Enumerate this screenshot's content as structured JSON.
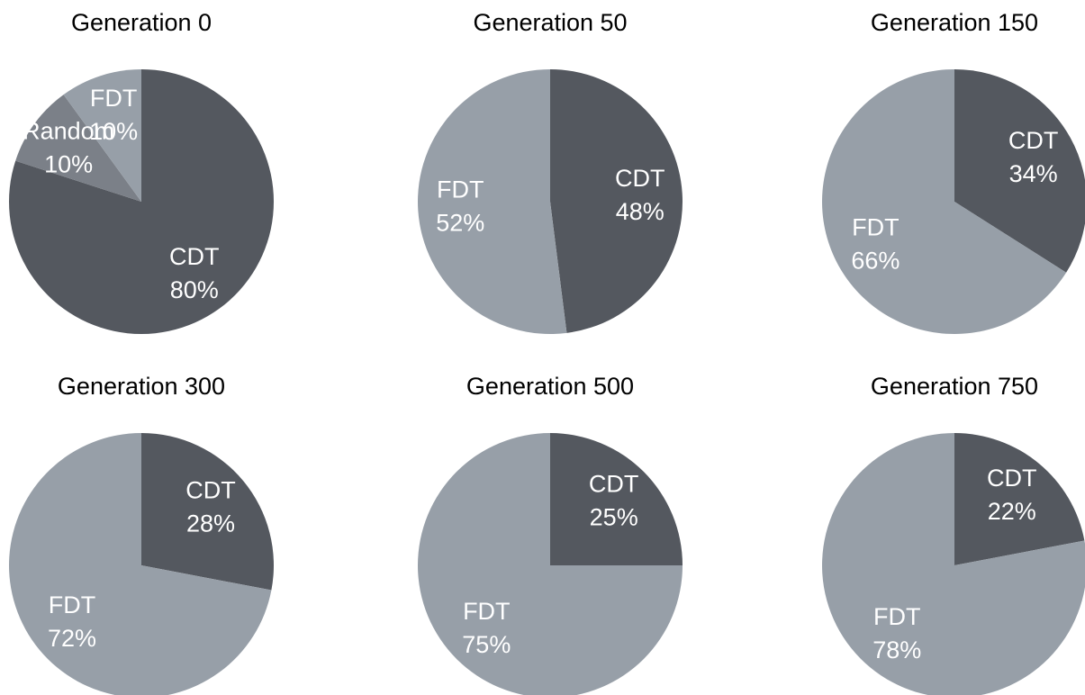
{
  "chart_data": [
    {
      "type": "pie",
      "title": "Generation 0",
      "categories": [
        "CDT",
        "Random",
        "FDT"
      ],
      "values": [
        80,
        10,
        10
      ],
      "value_labels": [
        "80%",
        "10%",
        "10%"
      ],
      "colors": [
        "#54585f",
        "#7b8088",
        "#979fa8"
      ]
    },
    {
      "type": "pie",
      "title": "Generation 50",
      "categories": [
        "CDT",
        "FDT"
      ],
      "values": [
        48,
        52
      ],
      "value_labels": [
        "48%",
        "52%"
      ],
      "colors": [
        "#54585f",
        "#979fa8"
      ]
    },
    {
      "type": "pie",
      "title": "Generation 150",
      "categories": [
        "CDT",
        "FDT"
      ],
      "values": [
        34,
        66
      ],
      "value_labels": [
        "34%",
        "66%"
      ],
      "colors": [
        "#54585f",
        "#979fa8"
      ]
    },
    {
      "type": "pie",
      "title": "Generation 300",
      "categories": [
        "CDT",
        "FDT"
      ],
      "values": [
        28,
        72
      ],
      "value_labels": [
        "28%",
        "72%"
      ],
      "colors": [
        "#54585f",
        "#979fa8"
      ]
    },
    {
      "type": "pie",
      "title": "Generation 500",
      "categories": [
        "CDT",
        "FDT"
      ],
      "values": [
        25,
        75
      ],
      "value_labels": [
        "25%",
        "75%"
      ],
      "colors": [
        "#54585f",
        "#979fa8"
      ]
    },
    {
      "type": "pie",
      "title": "Generation 750",
      "categories": [
        "CDT",
        "FDT"
      ],
      "values": [
        22,
        78
      ],
      "value_labels": [
        "22%",
        "78%"
      ],
      "colors": [
        "#54585f",
        "#979fa8"
      ]
    }
  ]
}
